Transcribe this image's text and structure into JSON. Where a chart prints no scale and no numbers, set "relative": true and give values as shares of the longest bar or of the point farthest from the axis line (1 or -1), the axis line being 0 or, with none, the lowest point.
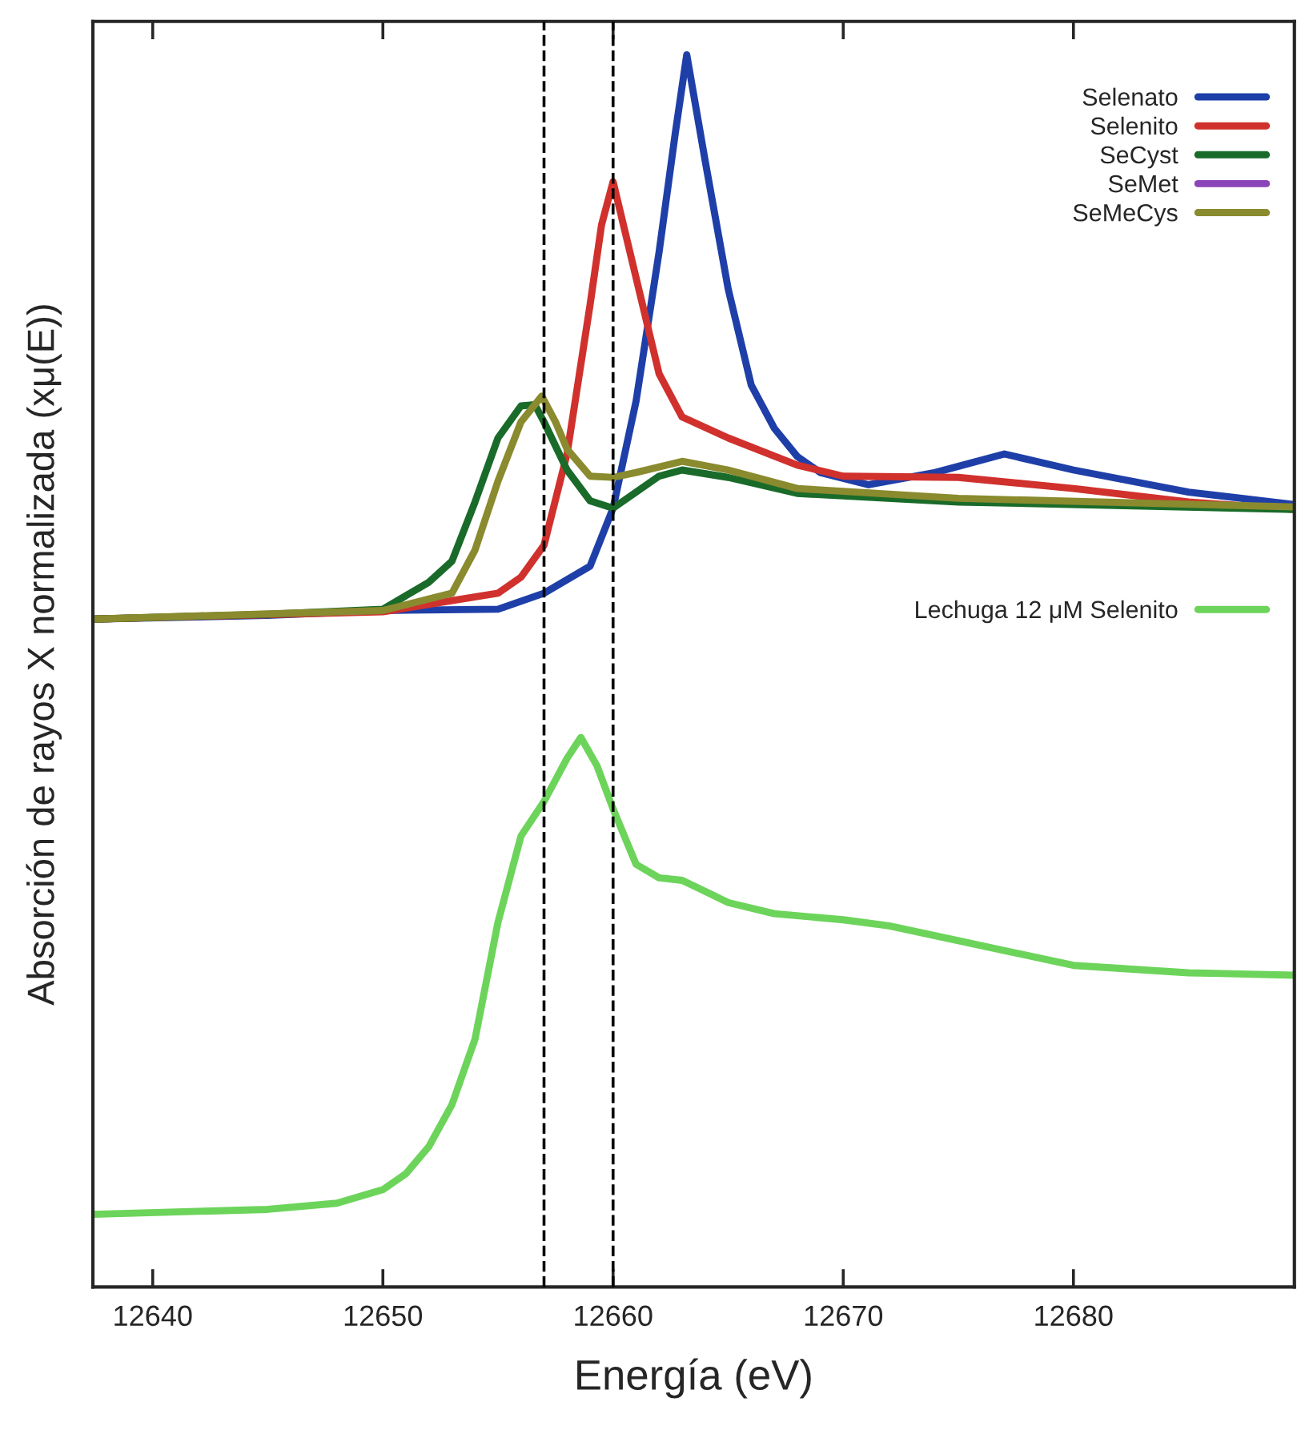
{
  "chart_data": {
    "type": "line",
    "relative": true,
    "xlabel": "Energía (eV)",
    "ylabel": "Absorción de rayos X normalizada (xμ(E))",
    "xlim": [
      12637.4,
      12689.6
    ],
    "xticks": [
      12640,
      12650,
      12660,
      12670,
      12680
    ],
    "legend": "top right",
    "line_style": "solid",
    "marker": "none",
    "grid": false,
    "tick_labels": "x",
    "ref_lines": [
      {
        "axis": "x",
        "value": 12657,
        "color": "#000000",
        "line_style": "dashed"
      },
      {
        "axis": "x",
        "value": 12660,
        "color": "#000000",
        "line_style": "dashed"
      }
    ],
    "series": [
      {
        "name": "Selenato",
        "color": "#1f3fa8",
        "x": [
          12637.4,
          12645,
          12650,
          12655,
          12657,
          12659,
          12660,
          12661,
          12662,
          12662.7,
          12663.2,
          12664,
          12665,
          12666,
          12667,
          12668,
          12669,
          12671.1,
          12674,
          12677,
          12680,
          12685,
          12689.6
        ],
        "values": [
          0.542,
          0.545,
          0.549,
          0.55,
          0.563,
          0.585,
          0.632,
          0.719,
          0.84,
          0.936,
          1.0,
          0.914,
          0.81,
          0.732,
          0.697,
          0.674,
          0.661,
          0.651,
          0.661,
          0.676,
          0.663,
          0.645,
          0.635
        ]
      },
      {
        "name": "Selenito",
        "color": "#d0312d",
        "x": [
          12637.4,
          12650,
          12655,
          12656,
          12657,
          12658,
          12659,
          12659.5,
          12660,
          12661,
          12662,
          12663,
          12665,
          12668,
          12670,
          12675,
          12680,
          12685,
          12689.6
        ],
        "values": [
          0.542,
          0.548,
          0.563,
          0.576,
          0.602,
          0.676,
          0.797,
          0.862,
          0.897,
          0.819,
          0.741,
          0.706,
          0.689,
          0.667,
          0.658,
          0.657,
          0.648,
          0.637,
          0.631
        ]
      },
      {
        "name": "SeCyst",
        "color": "#1a6b2a",
        "x": [
          12637.4,
          12645,
          12650,
          12652,
          12653,
          12654,
          12655,
          12656,
          12656.6,
          12657,
          12658,
          12659,
          12660,
          12661,
          12662,
          12663,
          12665,
          12668,
          12675,
          12689.6
        ],
        "values": [
          0.542,
          0.546,
          0.55,
          0.572,
          0.589,
          0.637,
          0.689,
          0.715,
          0.716,
          0.702,
          0.663,
          0.638,
          0.632,
          0.645,
          0.658,
          0.663,
          0.657,
          0.644,
          0.637,
          0.631
        ]
      },
      {
        "name": "SeMet",
        "color": "#8a45b8"
      },
      {
        "name": "SeMeCys",
        "color": "#8a8a2e",
        "x": [
          12637.4,
          12650,
          12653,
          12654,
          12655,
          12656,
          12656.9,
          12657.5,
          12658,
          12659,
          12660,
          12661,
          12663,
          12665,
          12668,
          12675,
          12689.6
        ],
        "values": [
          0.542,
          0.549,
          0.563,
          0.598,
          0.654,
          0.702,
          0.723,
          0.702,
          0.68,
          0.658,
          0.657,
          0.661,
          0.67,
          0.663,
          0.648,
          0.64,
          0.633
        ]
      },
      {
        "name": "Lechuga 12 μM Selenito",
        "color": "#6cd45a",
        "x": [
          12637.4,
          12645,
          12648,
          12650,
          12651,
          12652,
          12653,
          12654,
          12655,
          12656,
          12657,
          12658,
          12658.6,
          12659.3,
          12660,
          12661,
          12662,
          12663,
          12664,
          12665,
          12667,
          12670,
          12672,
          12675,
          12680,
          12685,
          12689.6
        ],
        "values": [
          0.059,
          0.063,
          0.068,
          0.079,
          0.092,
          0.114,
          0.148,
          0.201,
          0.296,
          0.366,
          0.394,
          0.429,
          0.446,
          0.423,
          0.388,
          0.343,
          0.332,
          0.33,
          0.321,
          0.312,
          0.303,
          0.298,
          0.293,
          0.281,
          0.261,
          0.255,
          0.253
        ]
      }
    ]
  }
}
